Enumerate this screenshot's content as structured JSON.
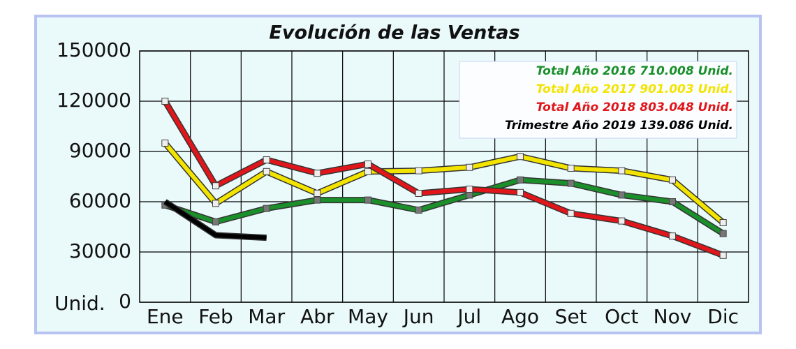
{
  "chart_data": {
    "type": "line",
    "title": "Evolución de las Ventas",
    "ylabel": "Unid.",
    "categories": [
      "Ene",
      "Feb",
      "Mar",
      "Abr",
      "May",
      "Jun",
      "Jul",
      "Ago",
      "Set",
      "Oct",
      "Nov",
      "Dic"
    ],
    "series": [
      {
        "name": "Total Año 2016 710.008 Unid.",
        "color": "#1a8f2a",
        "markers": true,
        "values": [
          58000,
          48000,
          56000,
          61000,
          61000,
          55000,
          64000,
          73000,
          71000,
          64000,
          60000,
          41000
        ]
      },
      {
        "name": "Total Año 2017 901.003 Unid.",
        "color": "#f3e400",
        "markers": true,
        "values": [
          95000,
          59000,
          78000,
          65000,
          78000,
          78500,
          80500,
          87000,
          80000,
          78500,
          73000,
          47500
        ]
      },
      {
        "name": "Total Año 2018 803.048 Unid.",
        "color": "#e0161b",
        "markers": true,
        "values": [
          120000,
          69500,
          85000,
          77000,
          82500,
          65000,
          67500,
          65500,
          53000,
          48500,
          39500,
          28000
        ]
      },
      {
        "name": "Trimestre Año 2019 139.086 Unid.",
        "color": "#000000",
        "markers": false,
        "values": [
          60000,
          40000,
          38500,
          null,
          null,
          null,
          null,
          null,
          null,
          null,
          null,
          null
        ]
      }
    ],
    "ylim": [
      0,
      150000
    ],
    "yticks": [
      0,
      30000,
      60000,
      90000,
      120000,
      150000
    ],
    "grid": true,
    "legend": "upper right"
  }
}
